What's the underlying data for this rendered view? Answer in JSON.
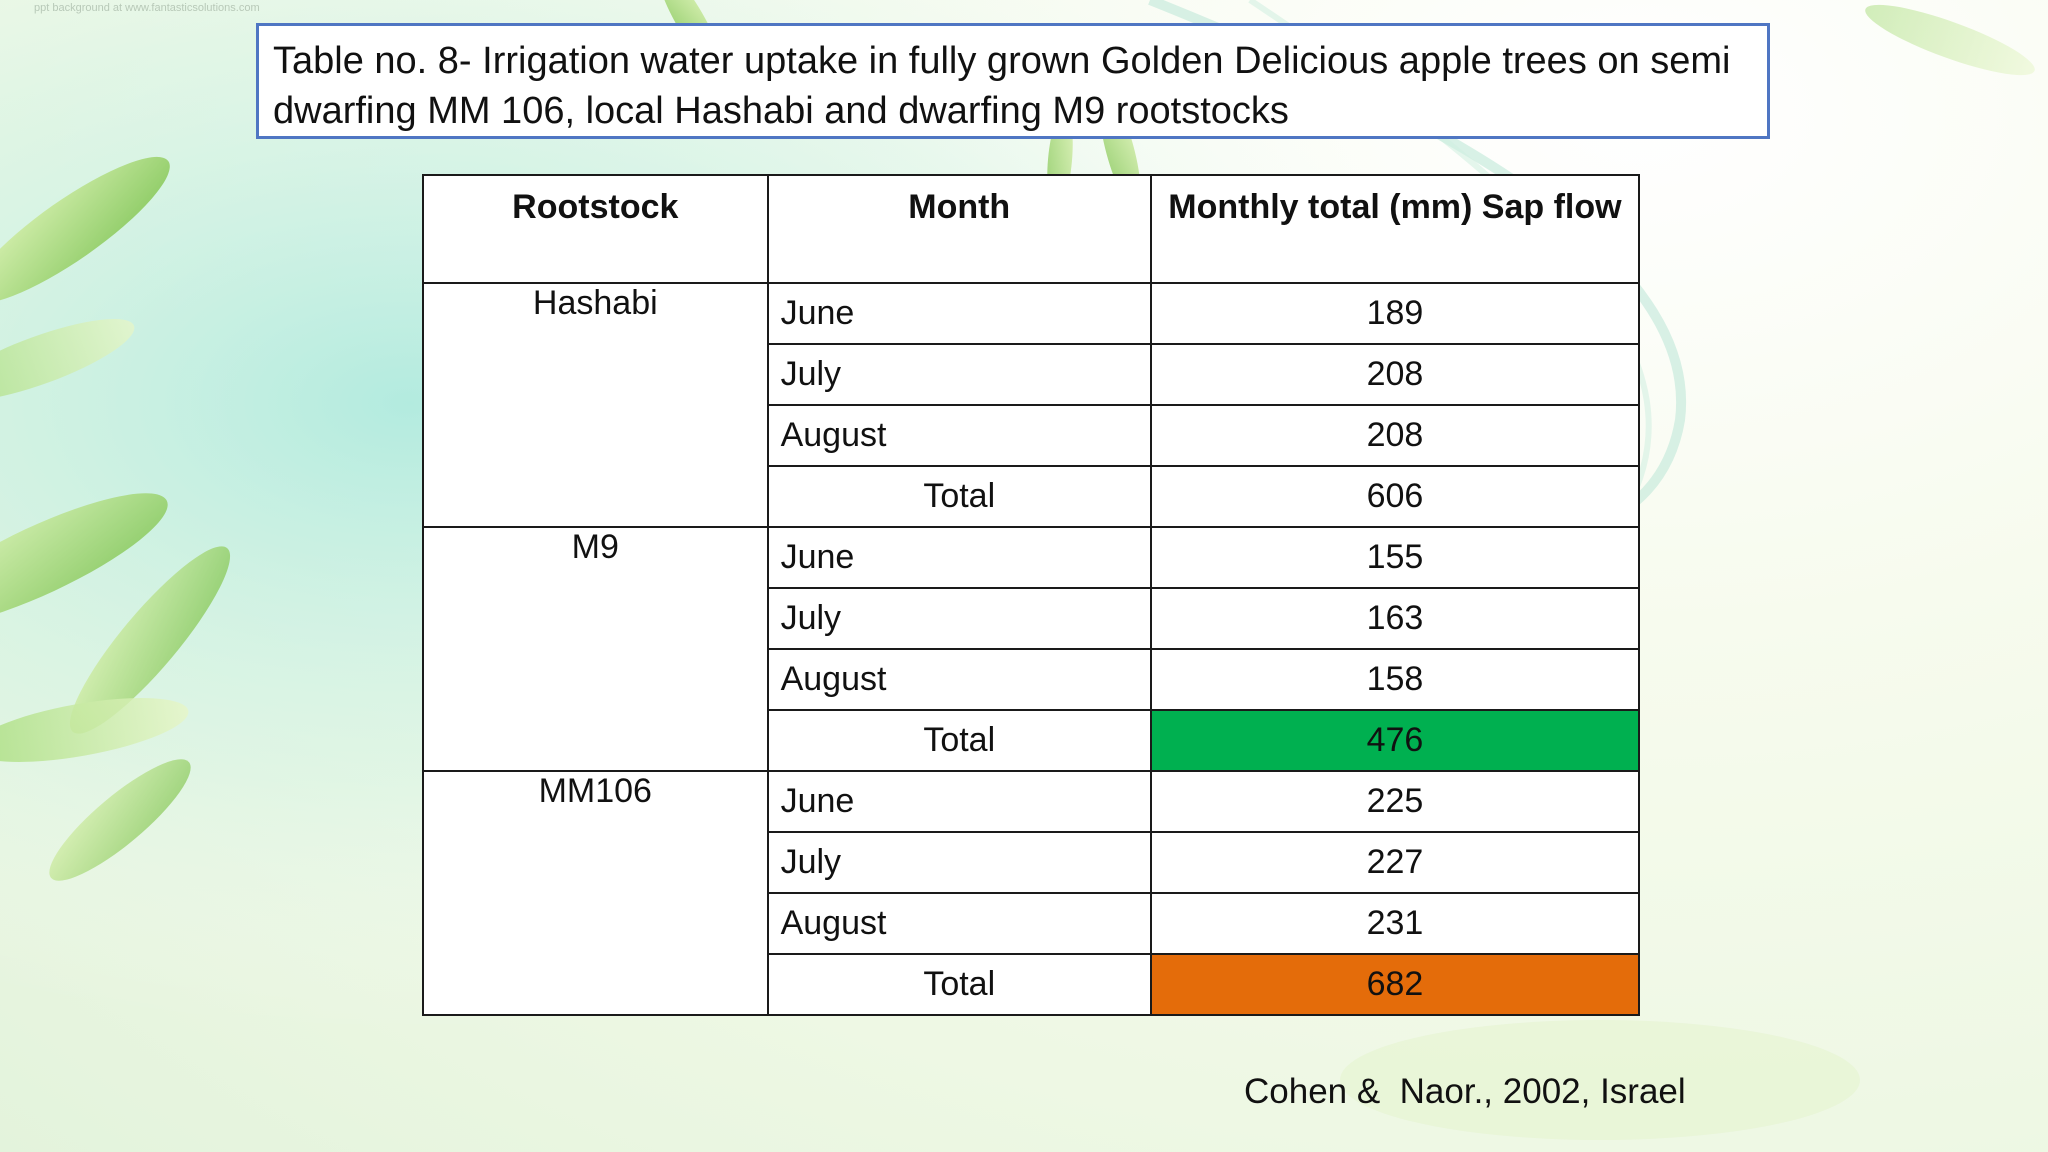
{
  "slide": {
    "title": "Table no. 8- Irrigation water uptake in fully grown Golden Delicious apple trees on semi dwarfing MM 106, local Hashabi and dwarfing M9 rootstocks",
    "watermark": "ppt background at www.fantasticsolutions.com",
    "citation": "Cohen &  Naor., 2002, Israel"
  },
  "table": {
    "headers": {
      "rootstock": "Rootstock",
      "month": "Month",
      "value": "Monthly total (mm) Sap flow"
    },
    "groups": [
      {
        "rootstock": "Hashabi",
        "rows": [
          {
            "month": "June",
            "value": "189"
          },
          {
            "month": "July",
            "value": "208"
          },
          {
            "month": "August",
            "value": "208"
          }
        ],
        "total_label": "Total",
        "total_value": "606"
      },
      {
        "rootstock": "M9",
        "rows": [
          {
            "month": "June",
            "value": "155"
          },
          {
            "month": "July",
            "value": "163"
          },
          {
            "month": "August",
            "value": "158"
          }
        ],
        "total_label": "Total",
        "total_value": "476"
      },
      {
        "rootstock": "MM106",
        "rows": [
          {
            "month": "June",
            "value": "225"
          },
          {
            "month": "July",
            "value": "227"
          },
          {
            "month": "August",
            "value": "231"
          }
        ],
        "total_label": "Total",
        "total_value": "682"
      }
    ]
  },
  "colors": {
    "title_border": "#4f76c3",
    "m9_total_highlight": "#00b050",
    "mm106_total_highlight": "#e46c0a"
  }
}
